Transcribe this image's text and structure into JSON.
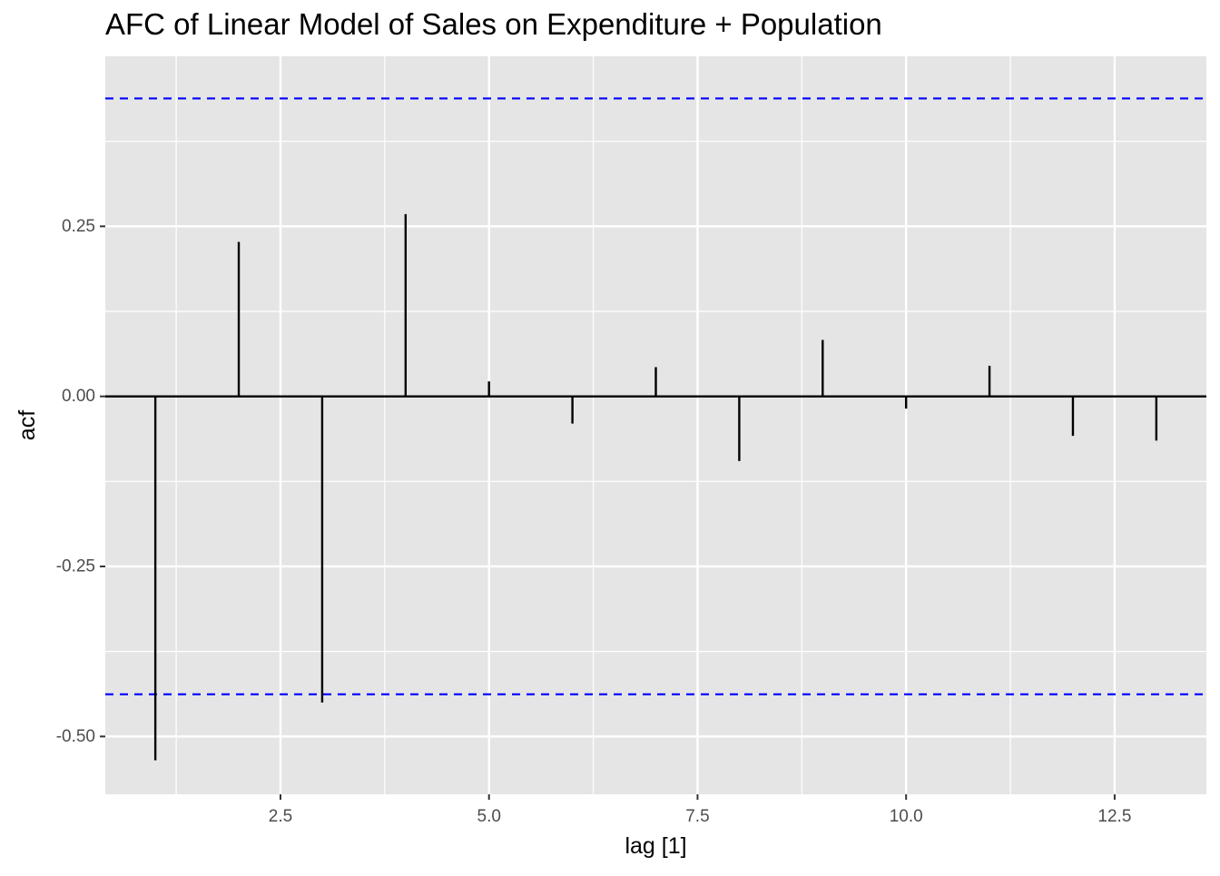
{
  "chart_data": {
    "type": "bar",
    "title": "AFC of Linear Model of Sales on Expenditure + Population",
    "xlabel": "lag [1]",
    "ylabel": "acf",
    "xlim": [
      0.4,
      13.6
    ],
    "ylim": [
      -0.585,
      0.5
    ],
    "x_ticks": [
      2.5,
      5.0,
      7.5,
      10.0,
      12.5
    ],
    "x_tick_labels": [
      "2.5",
      "5.0",
      "7.5",
      "10.0",
      "12.5"
    ],
    "y_ticks": [
      0.25,
      0.0,
      -0.25,
      -0.5
    ],
    "y_tick_labels": [
      "0.25",
      "0.00",
      "-0.25",
      "-0.50"
    ],
    "grid": true,
    "lags": [
      1,
      2,
      3,
      4,
      5,
      6,
      7,
      8,
      9,
      10,
      11,
      12,
      13
    ],
    "values": [
      -0.535,
      0.227,
      -0.45,
      0.268,
      0.022,
      -0.04,
      0.043,
      -0.095,
      0.083,
      -0.018,
      0.045,
      -0.058,
      -0.065
    ],
    "confidence_bounds": [
      0.438,
      -0.438
    ],
    "colors": {
      "panel_background": "#e5e5e5",
      "grid": "#ffffff",
      "bars": "#000000",
      "zero_line": "#000000",
      "confidence_line": "#0000ff",
      "axis_text": "#4d4d4d"
    }
  }
}
